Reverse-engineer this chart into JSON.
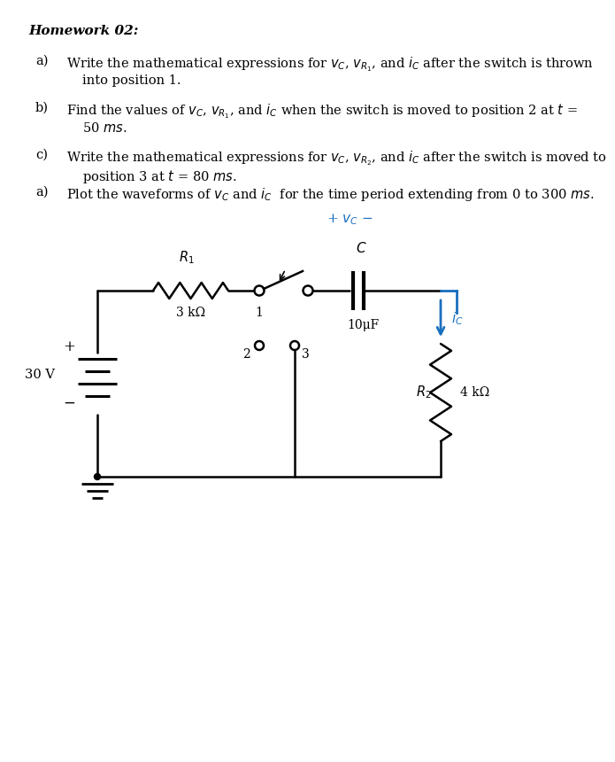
{
  "title": "Homework 02:",
  "bg_color": "#ffffff",
  "text_color": "#000000",
  "blue_color": "#1a6fbd",
  "items": [
    {
      "label": "a)",
      "line1": "Write the mathematical expressions for $v_C$, $v_{R_1}$, and $i_C$ after the switch is thrown",
      "line2": "into position 1."
    },
    {
      "label": "b)",
      "line1": "Find the values of $v_C$, $v_{R_1}$, and $i_C$ when the switch is moved to position 2 at $t$ =",
      "line2": "50 $ms$."
    },
    {
      "label": "c)",
      "line1": "Write the mathematical expressions for $v_C$, $v_{R_2}$, and $i_C$ after the switch is moved to",
      "line2": "position 3 at $t$ = 80 $ms$."
    },
    {
      "label": "a)",
      "line1": "Plot the waveforms of $v_C$ and $i_C$  for the time period extending from 0 to 300 $ms$.",
      "line2": ""
    }
  ],
  "R1_label": "$R_1$",
  "R1_val": "3 kΩ",
  "R2_label": "$R_2$",
  "R2_val": "4 kΩ",
  "C_label": "$C$",
  "C_val": "10μF",
  "vc_label": "$+ \\, v_C \\, -$",
  "ic_label": "$i_C$",
  "batt_label": "30 V",
  "batt_plus": "+",
  "batt_minus": "−",
  "sw1_label": "1",
  "sw2_label": "2",
  "sw3_label": "3"
}
